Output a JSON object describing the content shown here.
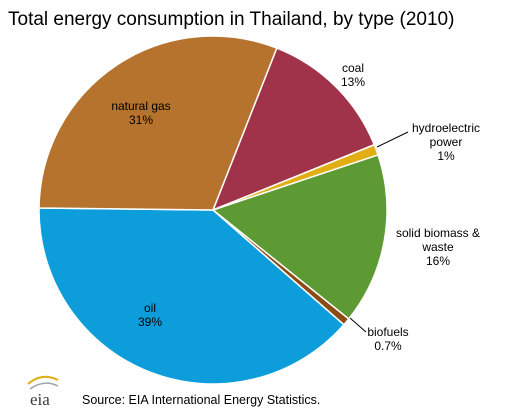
{
  "chart_data": {
    "type": "pie",
    "title": "Total energy consumption in Thailand, by type (2010)",
    "slices": [
      {
        "name": "coal",
        "value": 13,
        "value_label": "13%",
        "color": "#A0334A"
      },
      {
        "name": "hydroelectric power",
        "value": 1,
        "value_label": "1%",
        "color": "#E1AE14"
      },
      {
        "name": "solid biomass & waste",
        "value": 16,
        "value_label": "16%",
        "color": "#5E9A33"
      },
      {
        "name": "biofuels",
        "value": 0.7,
        "value_label": "0.7%",
        "color": "#8A4B14"
      },
      {
        "name": "oil",
        "value": 39,
        "value_label": "39%",
        "color": "#0E9DDB"
      },
      {
        "name": "natural gas",
        "value": 31,
        "value_label": "31%",
        "color": "#B5732E"
      }
    ],
    "legend": "none"
  },
  "source": "Source: EIA International Energy Statistics.",
  "logo": {
    "text": "eia",
    "icon": "eia-logo-icon",
    "accent_color": "#E1AE14"
  }
}
